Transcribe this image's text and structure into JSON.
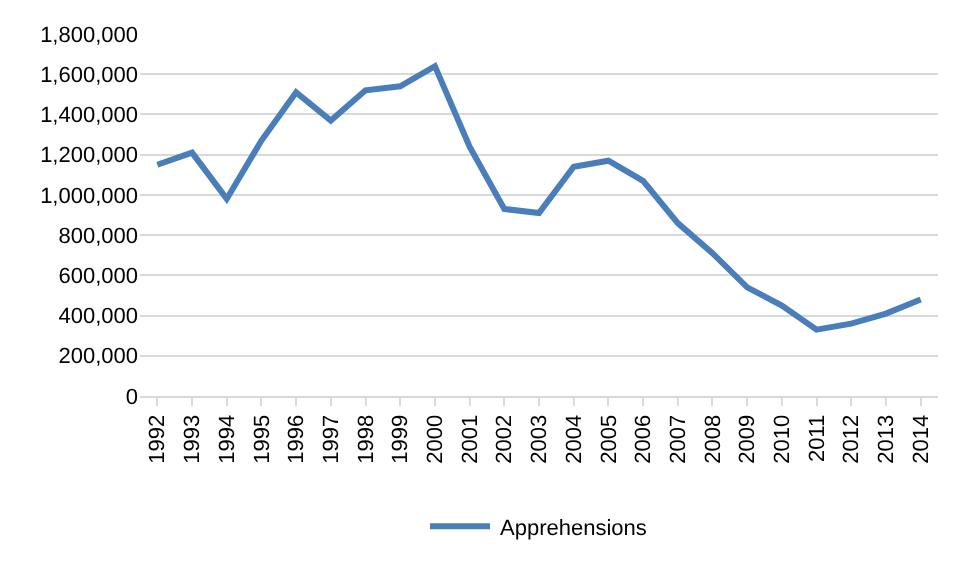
{
  "chart_data": {
    "type": "line",
    "categories": [
      "1992",
      "1993",
      "1994",
      "1995",
      "1996",
      "1997",
      "1998",
      "1999",
      "2000",
      "2001",
      "2002",
      "2003",
      "2004",
      "2005",
      "2006",
      "2007",
      "2008",
      "2009",
      "2010",
      "2011",
      "2012",
      "2013",
      "2014"
    ],
    "series": [
      {
        "name": "Apprehensions",
        "color": "#4a7ebb",
        "values": [
          1150000,
          1210000,
          980000,
          1270000,
          1510000,
          1370000,
          1520000,
          1540000,
          1640000,
          1240000,
          930000,
          910000,
          1140000,
          1170000,
          1070000,
          860000,
          710000,
          540000,
          450000,
          330000,
          360000,
          410000,
          480000
        ]
      }
    ],
    "ylim": [
      0,
      1800000
    ],
    "yticks": [
      {
        "value": 0,
        "label": "0"
      },
      {
        "value": 200000,
        "label": "200,000"
      },
      {
        "value": 400000,
        "label": "400,000"
      },
      {
        "value": 600000,
        "label": "600,000"
      },
      {
        "value": 800000,
        "label": "800,000"
      },
      {
        "value": 1000000,
        "label": "1,000,000"
      },
      {
        "value": 1200000,
        "label": "1,200,000"
      },
      {
        "value": 1400000,
        "label": "1,400,000"
      },
      {
        "value": 1600000,
        "label": "1,600,000"
      },
      {
        "value": 1800000,
        "label": "1,800,000"
      }
    ],
    "grid": "y",
    "legend": "bottom",
    "marker": "none",
    "line_style": "solid"
  }
}
